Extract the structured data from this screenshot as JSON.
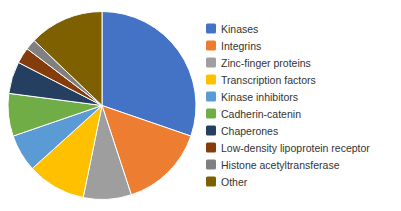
{
  "chart_data": {
    "type": "pie",
    "categories": [
      "Kinases",
      "Integrins",
      "Zinc-finger proteins",
      "Transcription factors",
      "Kinase inhibitors",
      "Cadherin-catenin",
      "Chaperones",
      "Low-density lipoprotein receptor",
      "Histone acetyltransferase",
      "Other"
    ],
    "values": [
      33,
      16,
      9,
      11,
      7,
      8,
      6,
      3,
      2,
      14
    ],
    "colors": [
      "#4472C4",
      "#ED7D31",
      "#9E9E9E",
      "#FFC000",
      "#5B9BD5",
      "#70AD47",
      "#243F60",
      "#843C0C",
      "#808080",
      "#7F6000"
    ],
    "legend": "right"
  }
}
